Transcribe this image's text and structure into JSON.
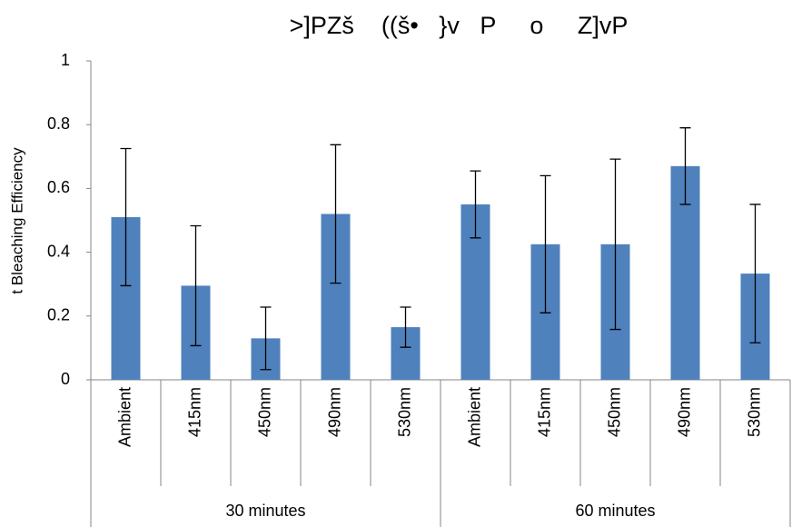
{
  "chart_data": {
    "type": "bar",
    "title": ">]PZš    ((š•   }v   P     o     Z]vP",
    "y_label": "t Bleaching Efficiency",
    "categories": [
      "Ambient",
      "415nm",
      "450nm",
      "490nm",
      "530nm",
      "Ambient",
      "415nm",
      "450nm",
      "490nm",
      "530nm"
    ],
    "groups": [
      {
        "label": "30 minutes",
        "size": 5
      },
      {
        "label": "60 minutes",
        "size": 5
      }
    ],
    "values": [
      0.51,
      0.295,
      0.13,
      0.52,
      0.165,
      0.55,
      0.425,
      0.425,
      0.67,
      0.333
    ],
    "errors": [
      0.215,
      0.188,
      0.098,
      0.217,
      0.063,
      0.105,
      0.215,
      0.267,
      0.12,
      0.217
    ],
    "color": "#4f81bd",
    "ylim": [
      0,
      1
    ],
    "yticks": [
      0,
      0.2,
      0.4,
      0.6,
      0.8,
      1
    ],
    "grid": false
  }
}
